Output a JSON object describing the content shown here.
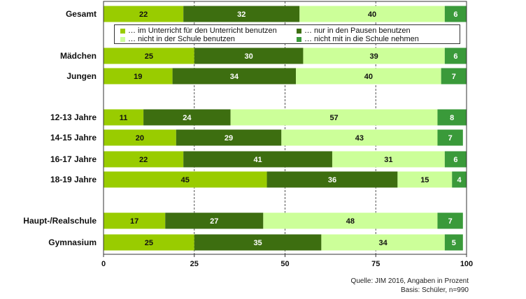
{
  "colors": {
    "unterricht": "#99cc00",
    "pausen": "#3d6e10",
    "nicht_schule": "#ccff99",
    "nicht_mit": "#3a9a3a",
    "frame": "#333333"
  },
  "chart_data": {
    "type": "bar",
    "orientation": "horizontal",
    "stacked": true,
    "categories": [
      "Gesamt",
      "Mädchen",
      "Jungen",
      "12-13 Jahre",
      "14-15 Jahre",
      "16-17 Jahre",
      "18-19 Jahre",
      "Haupt-/Realschule",
      "Gymnasium"
    ],
    "series": [
      {
        "name": "… im Unterricht  für den Unterricht benutzen",
        "color": "#99cc00",
        "values": [
          22,
          25,
          19,
          11,
          20,
          22,
          45,
          17,
          25
        ]
      },
      {
        "name": "… nur in den Pausen benutzen",
        "color": "#3d6e10",
        "values": [
          32,
          30,
          34,
          24,
          29,
          41,
          36,
          27,
          35
        ]
      },
      {
        "name": "… nicht in der Schule benutzen",
        "color": "#ccff99",
        "values": [
          40,
          39,
          40,
          57,
          43,
          31,
          15,
          48,
          34
        ]
      },
      {
        "name": "… nicht mit in die Schule nehmen",
        "color": "#3a9a3a",
        "values": [
          6,
          6,
          7,
          8,
          7,
          6,
          4,
          7,
          5
        ]
      }
    ],
    "xlim": [
      0,
      100
    ],
    "xticks": [
      0,
      25,
      50,
      75,
      100
    ],
    "grid": "vertical dashed"
  },
  "source": {
    "line1": "Quelle: JIM 2016, Angaben in Prozent",
    "line2": "Basis: Schüler, n=990"
  }
}
